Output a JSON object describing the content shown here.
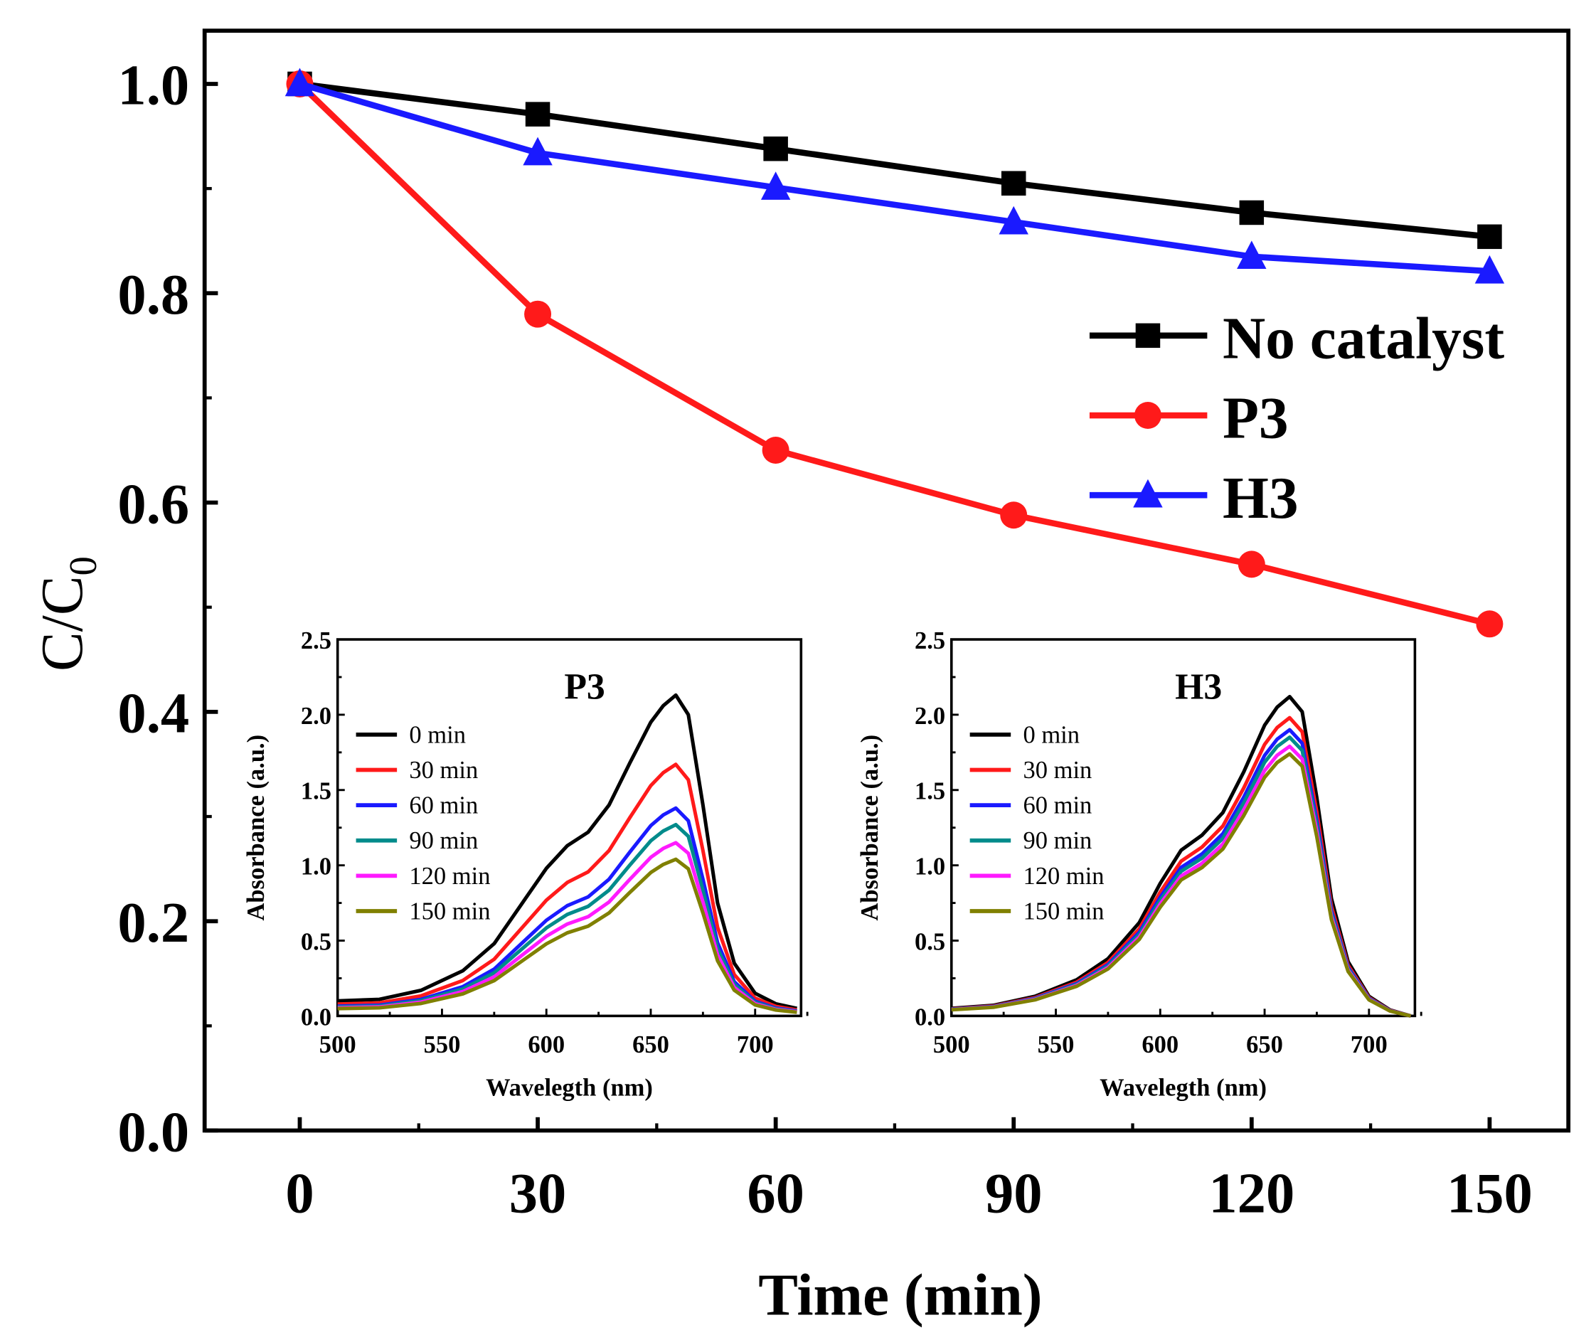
{
  "chart_data": [
    {
      "type": "line",
      "title": "",
      "xlabel": "Time (min)",
      "ylabel": "C/C",
      "ylabel_subscript": "0",
      "xlim": [
        -12,
        160
      ],
      "ylim": [
        0,
        1.05
      ],
      "xticks": [
        "0",
        "30",
        "60",
        "90",
        "120",
        "150"
      ],
      "yticks": [
        "0.0",
        "0.2",
        "0.4",
        "0.6",
        "0.8",
        "1.0"
      ],
      "legend_position": "upper-right",
      "x": [
        0,
        30,
        60,
        90,
        120,
        150
      ],
      "series": [
        {
          "name": "No catalyst",
          "color": "#000000",
          "marker": "square",
          "values": [
            1.0,
            0.971,
            0.938,
            0.905,
            0.877,
            0.854
          ]
        },
        {
          "name": "P3",
          "color": "#ff1a1a",
          "marker": "circle",
          "values": [
            1.0,
            0.78,
            0.65,
            0.588,
            0.541,
            0.484
          ]
        },
        {
          "name": "H3",
          "color": "#1a1aff",
          "marker": "triangle",
          "values": [
            1.0,
            0.934,
            0.901,
            0.868,
            0.835,
            0.821
          ]
        }
      ]
    },
    {
      "type": "line",
      "title": "P3",
      "xlabel": "Wavelegth (nm)",
      "ylabel": "Absorbance (a.u.)",
      "xlim": [
        500,
        722
      ],
      "ylim": [
        0,
        2.5
      ],
      "xticks": [
        "500",
        "550",
        "600",
        "650",
        "700"
      ],
      "yticks": [
        "0.0",
        "0.5",
        "1.0",
        "1.5",
        "2.0",
        "2.5"
      ],
      "legend_position": "upper-left",
      "wavelengths": [
        500,
        520,
        540,
        560,
        575,
        590,
        600,
        610,
        620,
        630,
        640,
        650,
        656,
        662,
        668,
        675,
        682,
        690,
        700,
        710,
        720
      ],
      "base_shape": [
        0.1,
        0.11,
        0.17,
        0.3,
        0.48,
        0.78,
        0.98,
        1.13,
        1.22,
        1.4,
        1.68,
        1.95,
        2.06,
        2.13,
        2.0,
        1.4,
        0.75,
        0.35,
        0.15,
        0.08,
        0.05
      ],
      "series": [
        {
          "name": "0 min",
          "color": "#000000",
          "peak": 2.13
        },
        {
          "name": "30 min",
          "color": "#ff1a1a",
          "peak": 1.67
        },
        {
          "name": "60 min",
          "color": "#1a1aff",
          "peak": 1.38
        },
        {
          "name": "90 min",
          "color": "#008b8b",
          "peak": 1.27
        },
        {
          "name": "120 min",
          "color": "#ff1aff",
          "peak": 1.15
        },
        {
          "name": "150 min",
          "color": "#808000",
          "peak": 1.04
        }
      ]
    },
    {
      "type": "line",
      "title": "H3",
      "xlabel": "Wavelegth (nm)",
      "ylabel": "Absorbance (a.u.)",
      "xlim": [
        500,
        722
      ],
      "ylim": [
        0,
        2.5
      ],
      "xticks": [
        "500",
        "550",
        "600",
        "650",
        "700"
      ],
      "yticks": [
        "0.0",
        "0.5",
        "1.0",
        "1.5",
        "2.0",
        "2.5"
      ],
      "legend_position": "upper-left",
      "wavelengths": [
        500,
        520,
        540,
        560,
        575,
        590,
        600,
        610,
        620,
        630,
        640,
        650,
        656,
        662,
        668,
        675,
        682,
        690,
        700,
        710,
        720
      ],
      "base_shape": [
        0.05,
        0.07,
        0.13,
        0.24,
        0.38,
        0.62,
        0.88,
        1.1,
        1.2,
        1.35,
        1.62,
        1.93,
        2.05,
        2.12,
        2.02,
        1.45,
        0.78,
        0.36,
        0.13,
        0.04,
        0.0
      ],
      "series": [
        {
          "name": "0 min",
          "color": "#000000",
          "peak": 2.12
        },
        {
          "name": "30 min",
          "color": "#ff1a1a",
          "peak": 1.98
        },
        {
          "name": "60 min",
          "color": "#1a1aff",
          "peak": 1.9
        },
        {
          "name": "90 min",
          "color": "#008b8b",
          "peak": 1.85
        },
        {
          "name": "120 min",
          "color": "#ff1aff",
          "peak": 1.79
        },
        {
          "name": "150 min",
          "color": "#808000",
          "peak": 1.74
        }
      ]
    }
  ]
}
